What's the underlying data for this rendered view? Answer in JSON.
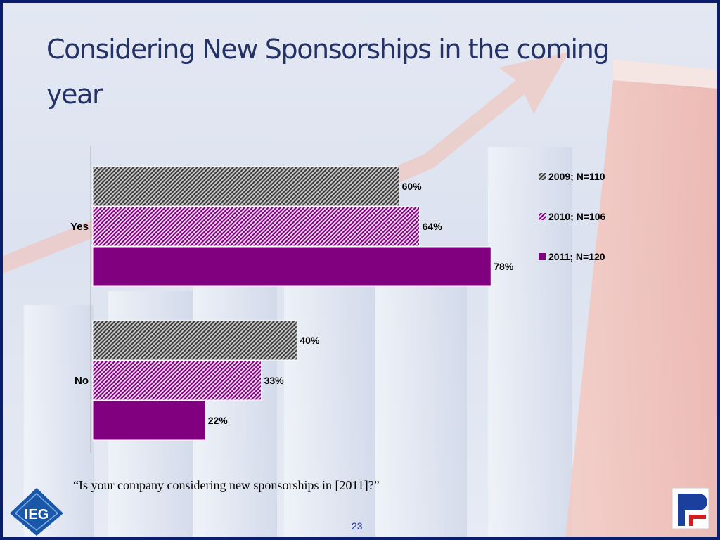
{
  "slide": {
    "title": "Considering New Sponsorships in the coming year",
    "question": "“Is your company considering new sponsorships in [2011]?”",
    "page_number": "23",
    "logo_left_text": "IEG",
    "logo_right_text": "PF"
  },
  "colors": {
    "frame": "#0a1e6e",
    "title": "#243266",
    "purple": "#800080",
    "gray": "#808080",
    "page_number": "#2233aa"
  },
  "chart_data": {
    "type": "bar",
    "orientation": "horizontal",
    "categories": [
      "Yes",
      "No"
    ],
    "series": [
      {
        "name": "2009; N=110",
        "values": [
          60,
          40
        ],
        "labels": [
          "60%",
          "40%"
        ],
        "pattern": "gray-hatch"
      },
      {
        "name": "2010; N=106",
        "values": [
          64,
          33
        ],
        "labels": [
          "64%",
          "33%"
        ],
        "pattern": "purple-hatch"
      },
      {
        "name": "2011; N=120",
        "values": [
          78,
          22
        ],
        "labels": [
          "78%",
          "22%"
        ],
        "pattern": "purple-solid"
      }
    ],
    "xlim": [
      0,
      100
    ],
    "value_format": "percent",
    "legend": "right",
    "grid": false
  }
}
